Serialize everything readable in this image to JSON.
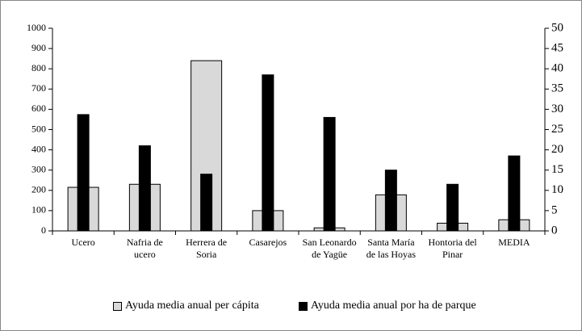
{
  "chart_data": {
    "type": "bar",
    "categories": [
      "Ucero",
      "Nafria de ucero",
      "Herrera de Soria",
      "Casarejos",
      "San Leonardo de Yagüe",
      "Santa María de las Hoyas",
      "Hontoria del Pinar",
      "MEDIA"
    ],
    "series": [
      {
        "name": "Ayuda media anual per cápita",
        "color": "#d9d9d9",
        "values": [
          215,
          230,
          840,
          100,
          15,
          178,
          38,
          55
        ]
      },
      {
        "name": "Ayuda media anual por ha de parque",
        "color": "#000000",
        "axis": "y2",
        "values": [
          28.7,
          21,
          14,
          38.5,
          28,
          15,
          11.5,
          18.5
        ]
      }
    ],
    "ylim": [
      0,
      1000
    ],
    "yticks": [
      0,
      100,
      200,
      300,
      400,
      500,
      600,
      700,
      800,
      900,
      1000
    ],
    "y2lim": [
      0,
      50
    ],
    "y2ticks": [
      0,
      5,
      10,
      15,
      20,
      25,
      30,
      35,
      40,
      45,
      50
    ],
    "grid": false,
    "legend": "bottom"
  }
}
